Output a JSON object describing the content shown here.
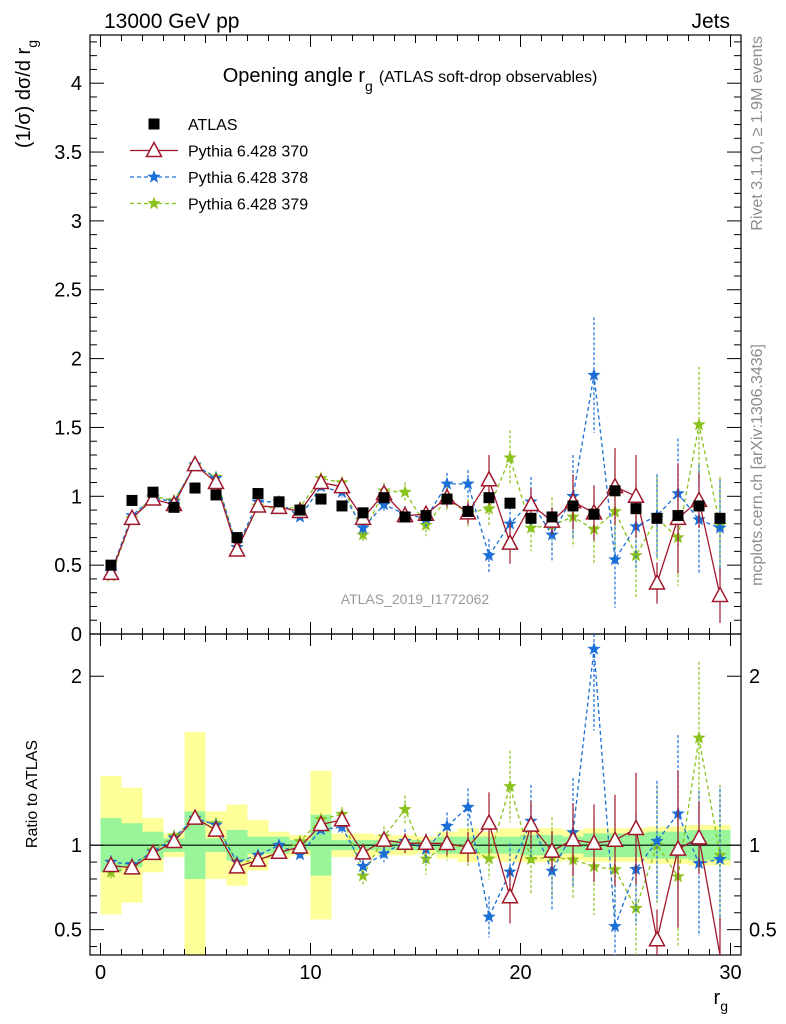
{
  "header": {
    "left": "13000 GeV pp",
    "right": "Jets"
  },
  "side_labels": {
    "upper": "Rivet 3.1.10, ≥ 1.9M events",
    "lower": "mcplots.cern.ch [arXiv:1306.3436]"
  },
  "chart_data": {
    "type": "scatter",
    "title": "Opening angle r",
    "title_sub": "g",
    "title_suffix": "(ATLAS soft-drop observables)",
    "analysis_label": "ATLAS_2019_I1772062",
    "xlabel": "r",
    "xlabel_sub": "g",
    "ylabel": "(1/σ) dσ/d r",
    "ylabel_sub": "g",
    "ratio_ylabel": "Ratio to ATLAS",
    "xlim": [
      -0.5,
      30.5
    ],
    "ylim": [
      0,
      4.35
    ],
    "ratio_ylim": [
      0.35,
      2.25
    ],
    "x_ticks": [
      "0",
      "10",
      "20",
      "30"
    ],
    "y_ticks": [
      "0",
      "0.5",
      "1",
      "1.5",
      "2",
      "2.5",
      "3",
      "3.5",
      "4"
    ],
    "ratio_y_ticks": [
      "0.5",
      "1",
      "2"
    ],
    "legend_position": "top-left",
    "x": [
      0.5,
      1.5,
      2.5,
      3.5,
      4.5,
      5.5,
      6.5,
      7.5,
      8.5,
      9.5,
      10.5,
      11.5,
      12.5,
      13.5,
      14.5,
      15.5,
      16.5,
      17.5,
      18.5,
      19.5,
      20.5,
      21.5,
      22.5,
      23.5,
      24.5,
      25.5,
      26.5,
      27.5,
      28.5,
      29.5
    ],
    "series": [
      {
        "name": "ATLAS",
        "color": "#000000",
        "marker": "square",
        "line": "none",
        "values": [
          0.5,
          0.97,
          1.03,
          0.92,
          1.06,
          1.01,
          0.7,
          1.02,
          0.96,
          0.9,
          0.98,
          0.93,
          0.88,
          0.99,
          0.85,
          0.86,
          0.98,
          0.89,
          0.99,
          0.95,
          0.84,
          0.85,
          0.93,
          0.87,
          1.04,
          0.91,
          0.84,
          0.86,
          0.93,
          0.84
        ],
        "band_inner": [
          0.16,
          0.13,
          0.08,
          0.04,
          0.2,
          0.04,
          0.09,
          0.05,
          0.05,
          0.03,
          0.18,
          0.03,
          0.03,
          0.03,
          0.03,
          0.03,
          0.05,
          0.05,
          0.05,
          0.05,
          0.06,
          0.06,
          0.05,
          0.07,
          0.07,
          0.07,
          0.08,
          0.08,
          0.09,
          0.09
        ],
        "band_outer": [
          0.41,
          0.34,
          0.16,
          0.07,
          0.67,
          0.2,
          0.24,
          0.15,
          0.08,
          0.06,
          0.44,
          0.07,
          0.07,
          0.06,
          0.06,
          0.05,
          0.08,
          0.1,
          0.08,
          0.1,
          0.1,
          0.1,
          0.09,
          0.1,
          0.1,
          0.1,
          0.11,
          0.11,
          0.12,
          0.12
        ]
      },
      {
        "name": "Pythia 6.428 370",
        "color": "#a0182c",
        "marker": "triangle-open",
        "line": "solid",
        "values": [
          0.44,
          0.84,
          0.98,
          0.94,
          1.23,
          1.1,
          0.61,
          0.93,
          0.92,
          0.89,
          1.1,
          1.07,
          0.84,
          1.02,
          0.86,
          0.87,
          0.99,
          0.88,
          1.12,
          0.66,
          0.94,
          0.82,
          0.96,
          0.88,
          1.07,
          1.0,
          0.37,
          0.84,
          0.97,
          0.28
        ],
        "errors": [
          0.02,
          0.02,
          0.02,
          0.02,
          0.02,
          0.02,
          0.02,
          0.02,
          0.02,
          0.02,
          0.03,
          0.04,
          0.04,
          0.05,
          0.05,
          0.05,
          0.07,
          0.08,
          0.18,
          0.15,
          0.12,
          0.1,
          0.2,
          0.2,
          0.28,
          0.3,
          0.15,
          0.4,
          0.2,
          0.2
        ]
      },
      {
        "name": "Pythia 6.428 378",
        "color": "#1b6fd6",
        "marker": "star",
        "line": "dashed",
        "values": [
          0.45,
          0.86,
          0.99,
          0.96,
          1.23,
          1.13,
          0.63,
          0.96,
          0.96,
          0.85,
          1.07,
          1.03,
          0.77,
          0.94,
          0.87,
          0.84,
          1.09,
          1.09,
          0.57,
          0.8,
          0.96,
          0.72,
          1.0,
          1.88,
          0.54,
          0.78,
          0.86,
          1.02,
          0.83,
          0.77
        ],
        "errors": [
          0.02,
          0.02,
          0.02,
          0.02,
          0.02,
          0.02,
          0.02,
          0.02,
          0.02,
          0.02,
          0.03,
          0.04,
          0.05,
          0.05,
          0.06,
          0.07,
          0.08,
          0.1,
          0.12,
          0.16,
          0.18,
          0.2,
          0.3,
          0.42,
          0.35,
          0.3,
          0.3,
          0.4,
          0.4,
          0.35
        ]
      },
      {
        "name": "Pythia 6.428 379",
        "color": "#8ac21e",
        "marker": "star",
        "line": "dashed",
        "values": [
          0.42,
          0.84,
          1.0,
          0.97,
          1.22,
          1.14,
          0.63,
          0.93,
          0.91,
          0.92,
          1.13,
          1.1,
          0.72,
          1.04,
          1.03,
          0.79,
          0.98,
          0.88,
          0.91,
          1.28,
          0.77,
          0.79,
          0.85,
          0.76,
          0.89,
          0.57,
          0.84,
          0.7,
          1.52,
          0.79
        ],
        "errors": [
          0.02,
          0.02,
          0.02,
          0.02,
          0.02,
          0.02,
          0.02,
          0.02,
          0.02,
          0.02,
          0.03,
          0.04,
          0.05,
          0.06,
          0.07,
          0.08,
          0.09,
          0.1,
          0.12,
          0.2,
          0.17,
          0.2,
          0.22,
          0.25,
          0.28,
          0.3,
          0.3,
          0.35,
          0.42,
          0.35
        ]
      }
    ]
  }
}
